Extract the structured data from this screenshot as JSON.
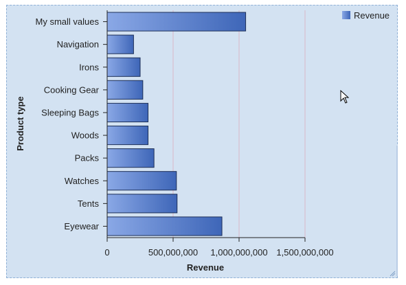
{
  "chart_data": {
    "type": "bar",
    "orientation": "horizontal",
    "categories": [
      "My small values",
      "Navigation",
      "Irons",
      "Cooking Gear",
      "Sleeping Bags",
      "Woods",
      "Packs",
      "Watches",
      "Tents",
      "Eyewear"
    ],
    "series": [
      {
        "name": "Revenue",
        "values": [
          1050000000,
          200000000,
          250000000,
          270000000,
          310000000,
          310000000,
          355000000,
          525000000,
          530000000,
          870000000
        ]
      }
    ],
    "xlabel": "Revenue",
    "ylabel": "Product type",
    "xlim": [
      0,
      1500000000
    ],
    "x_ticks": [
      0,
      500000000,
      1000000000,
      1500000000
    ],
    "x_tick_labels": [
      "0",
      "500,000,000",
      "1,000,000,000",
      "1,500,000,000"
    ],
    "grid": "vertical",
    "legend_position": "top-right",
    "colors": {
      "bar_light": "#8aa8e6",
      "bar_dark": "#3e66b8",
      "bar_border": "#1d2f57",
      "background": "#d3e2f2",
      "gridline": "#d8b8c8"
    }
  }
}
